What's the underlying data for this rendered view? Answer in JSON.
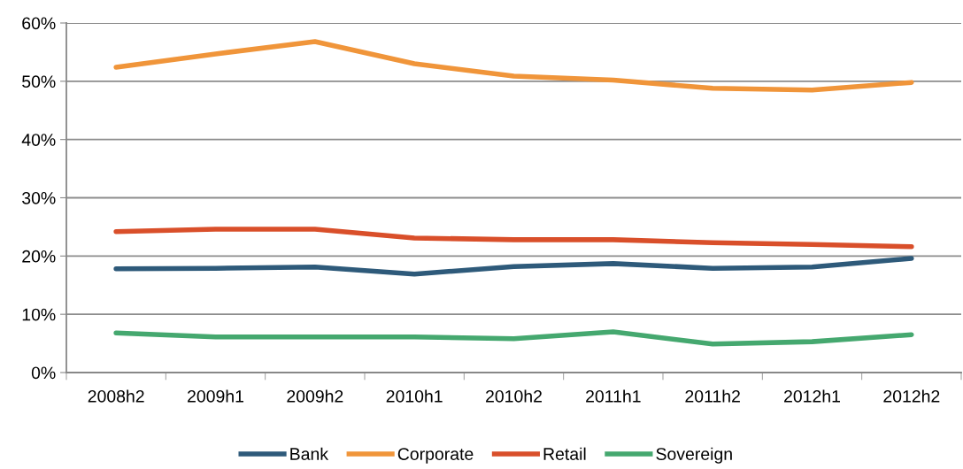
{
  "chart_data": {
    "type": "line",
    "categories": [
      "2008h2",
      "2009h1",
      "2009h2",
      "2010h1",
      "2010h2",
      "2011h1",
      "2011h2",
      "2012h1",
      "2012h2"
    ],
    "series": [
      {
        "name": "Bank",
        "color": "#2e5a7a",
        "values": [
          17.8,
          17.9,
          18.1,
          16.9,
          18.2,
          18.7,
          17.9,
          18.1,
          19.6
        ]
      },
      {
        "name": "Corporate",
        "color": "#f0953a",
        "values": [
          52.4,
          54.7,
          56.8,
          53.0,
          50.9,
          50.2,
          48.8,
          48.5,
          49.8
        ]
      },
      {
        "name": "Retail",
        "color": "#d94f2a",
        "values": [
          24.2,
          24.6,
          24.6,
          23.1,
          22.8,
          22.8,
          22.3,
          22.0,
          21.6
        ]
      },
      {
        "name": "Sovereign",
        "color": "#45a86f",
        "values": [
          6.8,
          6.1,
          6.1,
          6.1,
          5.8,
          7.0,
          4.9,
          5.3,
          6.5
        ]
      }
    ],
    "ylim": [
      0,
      60
    ],
    "yticks": [
      {
        "value": 0,
        "label": "0%"
      },
      {
        "value": 10,
        "label": "10%"
      },
      {
        "value": 20,
        "label": "20%"
      },
      {
        "value": 30,
        "label": "30%"
      },
      {
        "value": 40,
        "label": "40%"
      },
      {
        "value": 50,
        "label": "50%"
      },
      {
        "value": 60,
        "label": "60%"
      }
    ],
    "grid": "y",
    "legend": "bottom",
    "marker": "none",
    "line_style": "solid"
  }
}
